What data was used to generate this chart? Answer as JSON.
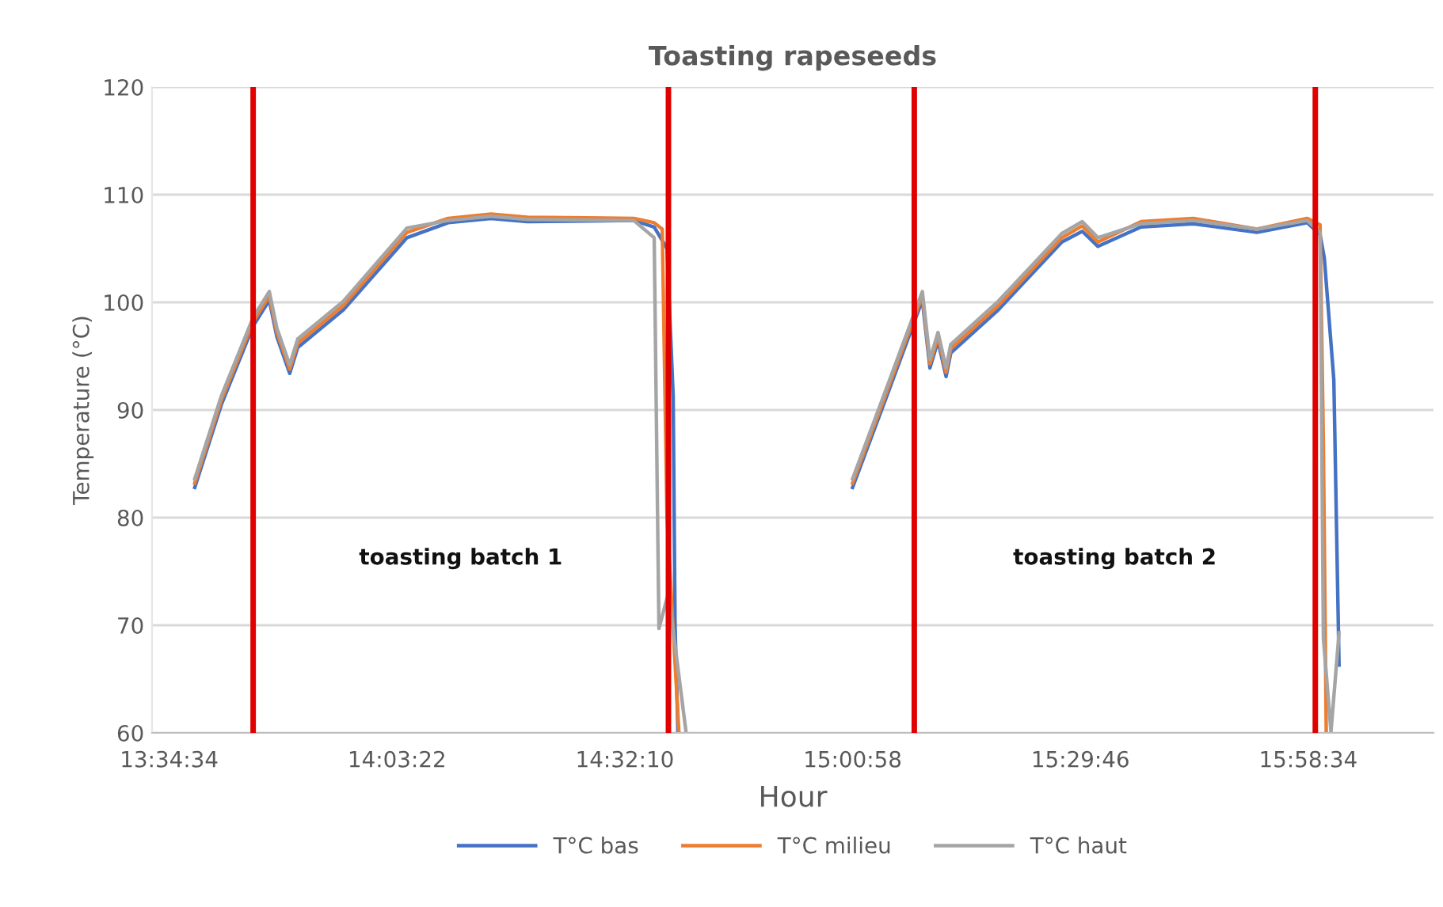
{
  "chart_data": {
    "type": "line",
    "title": "Toasting rapeseeds",
    "xlabel": "Hour",
    "ylabel": "Temperature (°C)",
    "annotations": [
      "toasting batch 1",
      "toasting batch 2"
    ],
    "xlim": [
      13.54,
      16.24
    ],
    "ylim": [
      60,
      120
    ],
    "xticks": [
      {
        "value": 13.57611,
        "label": "13:34:34"
      },
      {
        "value": 14.05611,
        "label": "14:03:22"
      },
      {
        "value": 14.53611,
        "label": "14:32:10"
      },
      {
        "value": 15.01611,
        "label": "15:00:58"
      },
      {
        "value": 15.49611,
        "label": "15:29:46"
      },
      {
        "value": 15.97611,
        "label": "15:58:34"
      }
    ],
    "yticks": [
      60,
      70,
      80,
      90,
      100,
      110,
      120
    ],
    "grid": "y",
    "legend": "bottom",
    "marker": "none",
    "line_style": "solid",
    "ref_lines": [
      {
        "axis": "x",
        "value": 13.753,
        "color": "#e00000"
      },
      {
        "axis": "x",
        "value": 14.628,
        "color": "#e00000"
      },
      {
        "axis": "x",
        "value": 15.146,
        "color": "#e00000"
      },
      {
        "axis": "x",
        "value": 15.991,
        "color": "#e00000"
      }
    ],
    "series": [
      {
        "name": "T°C bas",
        "color": "#4472c4",
        "x": [
          13.63,
          13.686,
          13.753,
          13.787,
          13.803,
          13.83,
          13.847,
          13.943,
          14.077,
          14.164,
          14.254,
          14.331,
          14.555,
          14.598,
          14.625,
          14.638,
          14.642,
          14.648,
          15.0,
          15.016,
          15.089,
          15.163,
          15.179,
          15.196,
          15.213,
          15.223,
          15.323,
          15.457,
          15.5,
          15.533,
          15.624,
          15.734,
          15.868,
          15.974,
          16.001,
          16.01,
          16.03,
          16.041
        ],
        "values": [
          82.8,
          90.5,
          97.8,
          100.2,
          96.8,
          93.4,
          95.8,
          99.3,
          106.0,
          107.4,
          107.8,
          107.5,
          107.6,
          107.0,
          105.0,
          91.3,
          70,
          60,
          null,
          82.8,
          91.4,
          100.2,
          93.9,
          96.4,
          93.1,
          95.3,
          99.3,
          105.6,
          106.6,
          105.2,
          107.0,
          107.3,
          106.5,
          107.4,
          106.3,
          104.1,
          92.8,
          66.3
        ]
      },
      {
        "name": "T°C milieu",
        "color": "#ed7d31",
        "x": [
          13.63,
          13.686,
          13.753,
          13.787,
          13.803,
          13.83,
          13.847,
          13.943,
          14.077,
          14.164,
          14.254,
          14.331,
          14.555,
          14.598,
          14.615,
          14.625,
          14.65,
          15.0,
          15.016,
          15.089,
          15.163,
          15.179,
          15.196,
          15.213,
          15.223,
          15.323,
          15.457,
          15.5,
          15.533,
          15.624,
          15.734,
          15.868,
          15.974,
          16.001,
          16.008,
          16.014
        ],
        "values": [
          83.2,
          90.9,
          98.2,
          100.6,
          97.2,
          93.8,
          96.2,
          99.7,
          106.5,
          107.8,
          108.2,
          107.9,
          107.8,
          107.4,
          106.8,
          80,
          60.1,
          null,
          83.2,
          91.8,
          100.6,
          94.3,
          96.8,
          93.5,
          95.7,
          99.7,
          106.0,
          107.1,
          105.6,
          107.5,
          107.8,
          106.8,
          107.8,
          107.2,
          86.9,
          60.1
        ]
      },
      {
        "name": "T°C haut",
        "color": "#a5a5a5",
        "x": [
          13.63,
          13.686,
          13.753,
          13.787,
          13.803,
          13.83,
          13.847,
          13.943,
          14.077,
          14.164,
          14.254,
          14.331,
          14.555,
          14.598,
          14.608,
          14.628,
          14.665,
          15.0,
          15.016,
          15.089,
          15.163,
          15.179,
          15.196,
          15.213,
          15.223,
          15.323,
          15.457,
          15.5,
          15.533,
          15.624,
          15.734,
          15.868,
          15.974,
          16.001,
          16.008,
          16.024,
          16.041
        ],
        "values": [
          83.6,
          91.3,
          98.6,
          101.0,
          97.6,
          94.2,
          96.6,
          100.1,
          106.9,
          107.6,
          108.0,
          107.7,
          107.6,
          106.0,
          69.7,
          73.0,
          60.1,
          null,
          83.6,
          92.2,
          101.0,
          94.7,
          97.2,
          93.9,
          96.1,
          100.1,
          106.4,
          107.5,
          106.0,
          107.3,
          107.6,
          106.8,
          107.6,
          106.5,
          68.8,
          60.1,
          69.3
        ]
      }
    ]
  }
}
